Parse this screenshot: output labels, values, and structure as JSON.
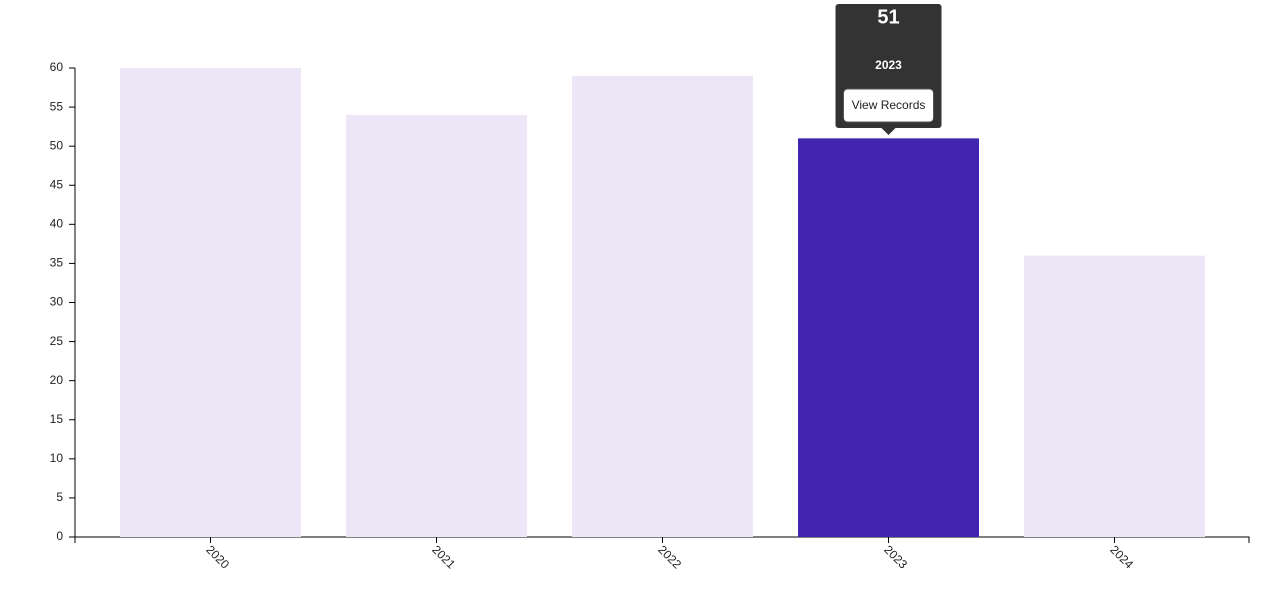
{
  "chart_data": {
    "type": "bar",
    "categories": [
      "2020",
      "2021",
      "2022",
      "2023",
      "2024"
    ],
    "values": [
      60,
      54,
      59,
      51,
      36
    ],
    "color": "#ede6f6",
    "highlight_color": "#4124b0",
    "selected": 3,
    "ylim": [
      0,
      60
    ],
    "yticks": [
      0,
      5,
      10,
      15,
      20,
      25,
      30,
      35,
      40,
      45,
      50,
      55,
      60
    ],
    "tooltip": {
      "button": "View Records"
    }
  }
}
